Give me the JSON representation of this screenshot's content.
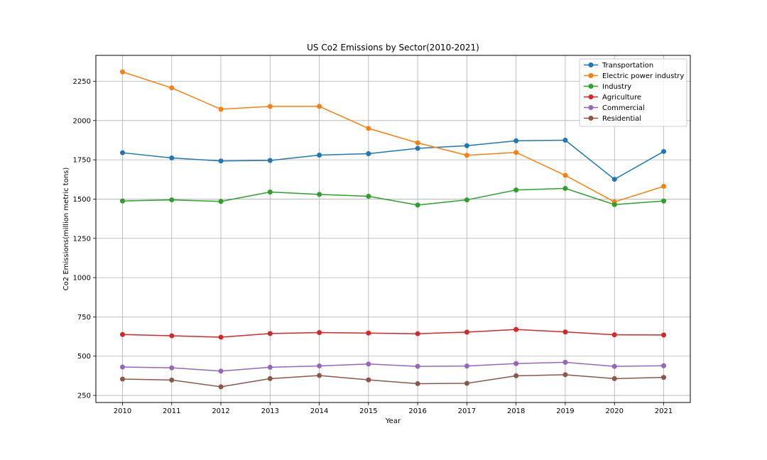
{
  "chart_data": {
    "type": "line",
    "title": "US Co2 Emissions by Sector(2010-2021)",
    "xlabel": "Year",
    "ylabel": "Co2 Emissions(million metric tons)",
    "x": [
      2010,
      2011,
      2012,
      2013,
      2014,
      2015,
      2016,
      2017,
      2018,
      2019,
      2020,
      2021
    ],
    "y_ticks": [
      250,
      500,
      750,
      1000,
      1250,
      1500,
      1750,
      2000,
      2250
    ],
    "ylim": [
      205,
      2415
    ],
    "grid": true,
    "legend_position": "top-right",
    "series": [
      {
        "name": "Transportation",
        "color": "#1f77b4",
        "values": [
          1795,
          1762,
          1743,
          1746,
          1780,
          1789,
          1823,
          1840,
          1871,
          1875,
          1626,
          1803
        ]
      },
      {
        "name": "Electric power industry",
        "color": "#ff7f0e",
        "values": [
          2310,
          2208,
          2072,
          2090,
          2090,
          1950,
          1858,
          1779,
          1797,
          1651,
          1482,
          1581
        ]
      },
      {
        "name": "Industry",
        "color": "#2ca02c",
        "values": [
          1488,
          1495,
          1485,
          1545,
          1530,
          1518,
          1462,
          1495,
          1558,
          1568,
          1465,
          1488
        ]
      },
      {
        "name": "Agriculture",
        "color": "#d62728",
        "values": [
          638,
          630,
          621,
          644,
          650,
          647,
          643,
          653,
          670,
          654,
          636,
          635
        ]
      },
      {
        "name": "Commercial",
        "color": "#9467bd",
        "values": [
          431,
          426,
          405,
          429,
          438,
          450,
          435,
          437,
          453,
          461,
          435,
          439
        ]
      },
      {
        "name": "Residential",
        "color": "#8c564b",
        "values": [
          354,
          348,
          305,
          357,
          377,
          349,
          325,
          327,
          375,
          382,
          357,
          365
        ]
      }
    ]
  }
}
